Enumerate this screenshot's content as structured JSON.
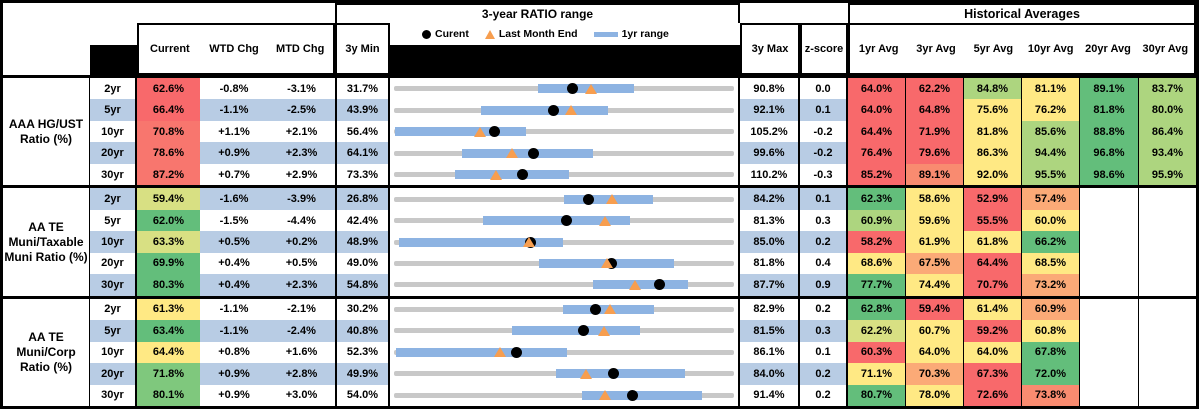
{
  "palette": {
    "red": "#F8696B",
    "red2": "#F8766E",
    "salmon": "#F98B70",
    "orange": "#FBAA77",
    "yellow": "#FFE984",
    "yellow_green": "#D8E083",
    "light_green": "#ADD57F",
    "mid_green": "#7FC87D",
    "green": "#63BE7B",
    "white": "#FFFFFF",
    "stripe": "#B8CCE4",
    "bar_blue": "#8DB3E2",
    "line_gray": "#C8C8C8",
    "tri_orange": "#F79E4F"
  },
  "header": {
    "chart_title": "3-year RATIO range",
    "hist_title": "Historical Averages",
    "col_current": "Current",
    "col_wtd": "WTD Chg",
    "col_mtd": "MTD Chg",
    "col_min": "3y Min",
    "col_max": "3y Max",
    "col_z": "z-score",
    "avg_cols": [
      "1yr Avg",
      "3yr Avg",
      "5yr Avg",
      "10yr Avg",
      "20yr Avg",
      "30yr Avg"
    ],
    "legend": [
      {
        "symbol": "current-dot",
        "label": "Curent"
      },
      {
        "symbol": "last-month-triangle",
        "label": "Last Month End"
      },
      {
        "symbol": "range-bar",
        "label": "1yr range"
      }
    ]
  },
  "chart_data": {
    "type": "table",
    "description": "Ratio table with per-row 3-year range strip chart; dot = current, triangle = last month end, blue bar = 1yr range, gray line = 3y min-max range",
    "groups": [
      {
        "label": "AAA HG/UST Ratio (%)",
        "rows": [
          {
            "tenor": "2yr",
            "current": "62.6%",
            "cur_color": "red",
            "wtd": "-0.8%",
            "mtd": "-3.1%",
            "min3y": "31.7%",
            "max3y": "90.8%",
            "zscore": "0.0",
            "range_1yr": [
              56.5,
              73.1
            ],
            "last_month_end": 65.7,
            "avg_vals": [
              "64.0%",
              "62.2%",
              "84.8%",
              "81.1%",
              "89.1%",
              "83.7%"
            ],
            "avg_colors": [
              "red",
              "red",
              "light_green",
              "yellow",
              "green",
              "light_green"
            ]
          },
          {
            "tenor": "5yr",
            "current": "66.4%",
            "cur_color": "red",
            "wtd": "-1.1%",
            "mtd": "-2.5%",
            "min3y": "43.9%",
            "max3y": "92.1%",
            "zscore": "0.1",
            "range_1yr": [
              56.1,
              74.1
            ],
            "last_month_end": 68.9,
            "avg_vals": [
              "64.0%",
              "64.8%",
              "75.6%",
              "76.2%",
              "81.8%",
              "80.0%"
            ],
            "avg_colors": [
              "red",
              "red",
              "yellow",
              "yellow",
              "green",
              "light_green"
            ]
          },
          {
            "tenor": "10yr",
            "current": "70.8%",
            "cur_color": "red2",
            "wtd": "+1.1%",
            "mtd": "+2.1%",
            "min3y": "56.4%",
            "max3y": "105.2%",
            "zscore": "-0.2",
            "range_1yr": [
              56.6,
              75.3
            ],
            "last_month_end": 68.7,
            "avg_vals": [
              "64.4%",
              "71.9%",
              "81.8%",
              "85.6%",
              "88.8%",
              "86.4%"
            ],
            "avg_colors": [
              "red",
              "red",
              "yellow",
              "light_green",
              "green",
              "light_green"
            ]
          },
          {
            "tenor": "20yr",
            "current": "78.6%",
            "cur_color": "red2",
            "wtd": "+0.9%",
            "mtd": "+2.3%",
            "min3y": "64.1%",
            "max3y": "99.6%",
            "zscore": "-0.2",
            "range_1yr": [
              71.2,
              84.8
            ],
            "last_month_end": 76.3,
            "avg_vals": [
              "76.4%",
              "79.6%",
              "86.3%",
              "94.4%",
              "96.8%",
              "93.4%"
            ],
            "avg_colors": [
              "red",
              "red",
              "yellow",
              "light_green",
              "green",
              "light_green"
            ]
          },
          {
            "tenor": "30yr",
            "current": "87.2%",
            "cur_color": "red2",
            "wtd": "+0.7%",
            "mtd": "+2.9%",
            "min3y": "73.3%",
            "max3y": "110.2%",
            "zscore": "-0.3",
            "range_1yr": [
              79.9,
              92.2
            ],
            "last_month_end": 84.3,
            "avg_vals": [
              "85.2%",
              "89.1%",
              "92.0%",
              "95.5%",
              "98.6%",
              "95.9%"
            ],
            "avg_colors": [
              "red",
              "salmon",
              "yellow",
              "light_green",
              "green",
              "light_green"
            ]
          }
        ]
      },
      {
        "label": "AA TE Muni/Taxable Muni Ratio (%)",
        "rows": [
          {
            "tenor": "2yr",
            "current": "59.4%",
            "cur_color": "yellow_green",
            "wtd": "-1.6%",
            "mtd": "-3.9%",
            "min3y": "26.8%",
            "max3y": "84.2%",
            "zscore": "0.1",
            "range_1yr": [
              55.4,
              70.2
            ],
            "last_month_end": 63.3,
            "avg_vals": [
              "62.3%",
              "58.6%",
              "52.9%",
              "57.4%",
              "",
              ""
            ],
            "avg_colors": [
              "green",
              "yellow",
              "red",
              "orange",
              "white",
              "white"
            ]
          },
          {
            "tenor": "5yr",
            "current": "62.0%",
            "cur_color": "green",
            "wtd": "-1.5%",
            "mtd": "-4.4%",
            "min3y": "42.4%",
            "max3y": "81.3%",
            "zscore": "0.3",
            "range_1yr": [
              52.5,
              69.3
            ],
            "last_month_end": 66.4,
            "avg_vals": [
              "60.9%",
              "59.6%",
              "55.5%",
              "60.0%",
              "",
              ""
            ],
            "avg_colors": [
              "light_green",
              "yellow",
              "red",
              "yellow",
              "white",
              "white"
            ]
          },
          {
            "tenor": "10yr",
            "current": "63.3%",
            "cur_color": "yellow_green",
            "wtd": "+0.5%",
            "mtd": "+0.2%",
            "min3y": "48.9%",
            "max3y": "85.0%",
            "zscore": "0.2",
            "range_1yr": [
              49.4,
              66.7
            ],
            "last_month_end": 63.1,
            "avg_vals": [
              "58.2%",
              "61.9%",
              "61.8%",
              "66.2%",
              "",
              ""
            ],
            "avg_colors": [
              "red",
              "yellow",
              "yellow",
              "green",
              "white",
              "white"
            ]
          },
          {
            "tenor": "20yr",
            "current": "69.9%",
            "cur_color": "green",
            "wtd": "+0.4%",
            "mtd": "+0.5%",
            "min3y": "49.0%",
            "max3y": "81.8%",
            "zscore": "0.4",
            "range_1yr": [
              62.9,
              75.9
            ],
            "last_month_end": 69.4,
            "avg_vals": [
              "68.6%",
              "67.5%",
              "64.4%",
              "68.5%",
              "",
              ""
            ],
            "avg_colors": [
              "yellow",
              "orange",
              "red",
              "yellow",
              "white",
              "white"
            ]
          },
          {
            "tenor": "30yr",
            "current": "80.3%",
            "cur_color": "green",
            "wtd": "+0.4%",
            "mtd": "+2.3%",
            "min3y": "54.8%",
            "max3y": "87.7%",
            "zscore": "0.9",
            "range_1yr": [
              73.9,
              83.1
            ],
            "last_month_end": 78.0,
            "avg_vals": [
              "77.7%",
              "74.4%",
              "70.7%",
              "73.2%",
              "",
              ""
            ],
            "avg_colors": [
              "green",
              "yellow",
              "red",
              "orange",
              "white",
              "white"
            ]
          }
        ]
      },
      {
        "label": "AA TE Muni/Corp Ratio (%)",
        "rows": [
          {
            "tenor": "2yr",
            "current": "61.3%",
            "cur_color": "yellow",
            "wtd": "-1.1%",
            "mtd": "-2.1%",
            "min3y": "30.2%",
            "max3y": "82.9%",
            "zscore": "0.2",
            "range_1yr": [
              56.2,
              70.3
            ],
            "last_month_end": 63.4,
            "avg_vals": [
              "62.8%",
              "59.4%",
              "61.4%",
              "60.9%",
              "",
              ""
            ],
            "avg_colors": [
              "green",
              "red",
              "yellow",
              "orange",
              "white",
              "white"
            ]
          },
          {
            "tenor": "5yr",
            "current": "63.4%",
            "cur_color": "green",
            "wtd": "-1.1%",
            "mtd": "-2.4%",
            "min3y": "40.8%",
            "max3y": "81.5%",
            "zscore": "0.3",
            "range_1yr": [
              54.8,
              70.1
            ],
            "last_month_end": 65.8,
            "avg_vals": [
              "62.2%",
              "60.7%",
              "59.2%",
              "60.8%",
              "",
              ""
            ],
            "avg_colors": [
              "yellow_green",
              "yellow",
              "red",
              "yellow",
              "white",
              "white"
            ]
          },
          {
            "tenor": "10yr",
            "current": "64.4%",
            "cur_color": "yellow",
            "wtd": "+0.8%",
            "mtd": "+1.6%",
            "min3y": "52.3%",
            "max3y": "86.1%",
            "zscore": "0.1",
            "range_1yr": [
              52.5,
              69.4
            ],
            "last_month_end": 62.8,
            "avg_vals": [
              "60.3%",
              "64.0%",
              "64.0%",
              "67.8%",
              "",
              ""
            ],
            "avg_colors": [
              "red",
              "yellow",
              "yellow",
              "green",
              "white",
              "white"
            ]
          },
          {
            "tenor": "20yr",
            "current": "71.8%",
            "cur_color": "mid_green",
            "wtd": "+0.9%",
            "mtd": "+2.8%",
            "min3y": "49.9%",
            "max3y": "84.0%",
            "zscore": "0.2",
            "range_1yr": [
              66.0,
              78.9
            ],
            "last_month_end": 69.0,
            "avg_vals": [
              "71.1%",
              "70.3%",
              "67.3%",
              "72.0%",
              "",
              ""
            ],
            "avg_colors": [
              "yellow",
              "orange",
              "red",
              "green",
              "white",
              "white"
            ]
          },
          {
            "tenor": "30yr",
            "current": "80.1%",
            "cur_color": "mid_green",
            "wtd": "+0.9%",
            "mtd": "+3.0%",
            "min3y": "54.0%",
            "max3y": "91.4%",
            "zscore": "0.2",
            "range_1yr": [
              74.5,
              87.7
            ],
            "last_month_end": 77.1,
            "avg_vals": [
              "80.7%",
              "78.0%",
              "72.6%",
              "73.8%",
              "",
              ""
            ],
            "avg_colors": [
              "green",
              "yellow",
              "red",
              "salmon",
              "white",
              "white"
            ]
          }
        ]
      }
    ]
  }
}
